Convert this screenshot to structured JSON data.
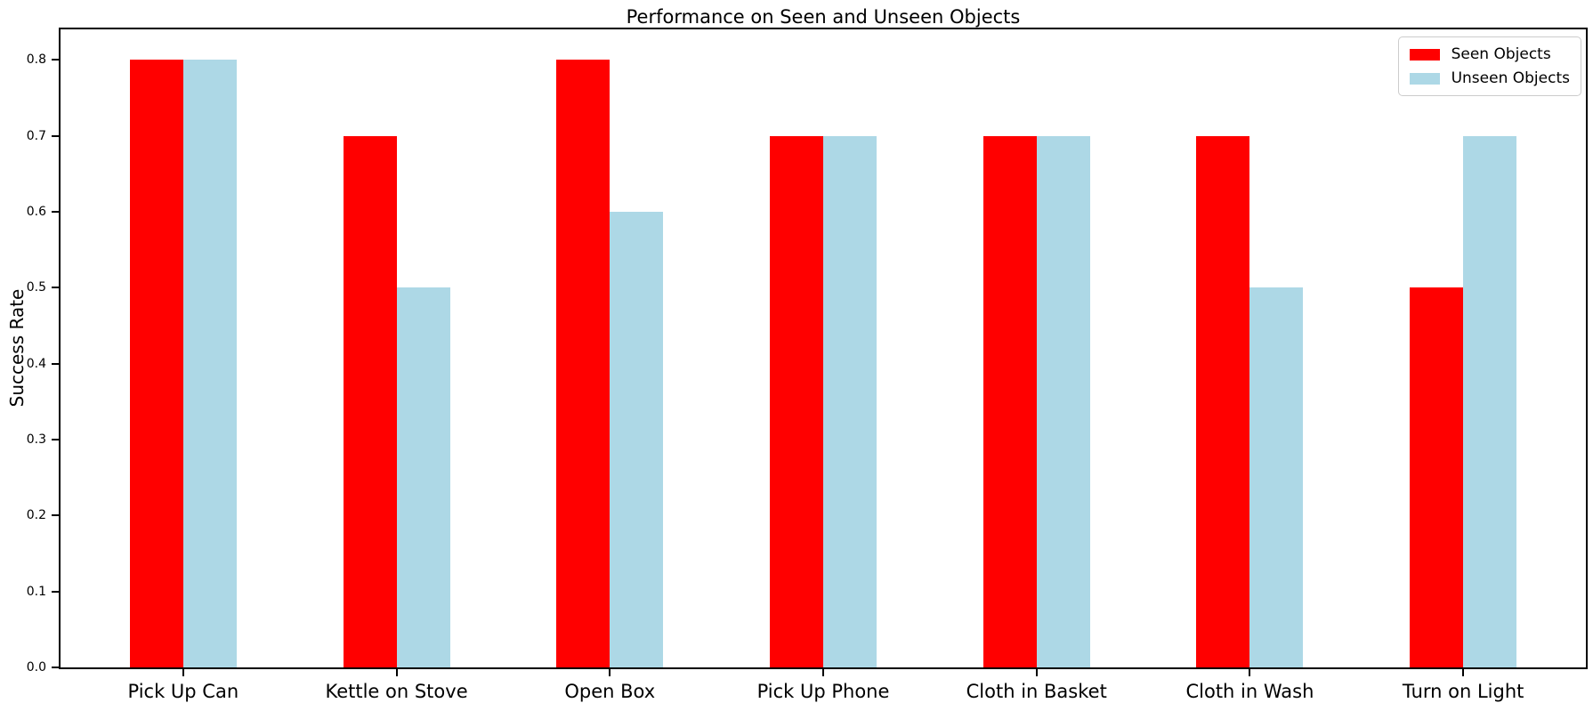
{
  "chart_data": {
    "type": "bar",
    "title": "Performance on Seen and Unseen Objects",
    "xlabel": "",
    "ylabel": "Success Rate",
    "categories": [
      "Pick Up Can",
      "Kettle on Stove",
      "Open Box",
      "Pick Up Phone",
      "Cloth in Basket",
      "Cloth in Wash",
      "Turn on Light"
    ],
    "series": [
      {
        "name": "Seen Objects",
        "color": "#ff0000",
        "values": [
          0.8,
          0.7,
          0.8,
          0.7,
          0.7,
          0.7,
          0.5
        ]
      },
      {
        "name": "Unseen Objects",
        "color": "#add8e6",
        "values": [
          0.8,
          0.5,
          0.6,
          0.7,
          0.7,
          0.5,
          0.7
        ]
      }
    ],
    "yticks": [
      0.0,
      0.1,
      0.2,
      0.3,
      0.4,
      0.5,
      0.6,
      0.7,
      0.8
    ],
    "ytick_labels": [
      "0.0",
      "0.1",
      "0.2",
      "0.3",
      "0.4",
      "0.5",
      "0.6",
      "0.7",
      "0.8"
    ],
    "ylim": [
      0,
      0.84
    ],
    "xlim": [
      -0.575,
      6.575
    ],
    "bar_width_units": 0.25,
    "grid": false,
    "legend_position": "upper right",
    "axis_color": "#000000",
    "background_color": "#ffffff"
  }
}
